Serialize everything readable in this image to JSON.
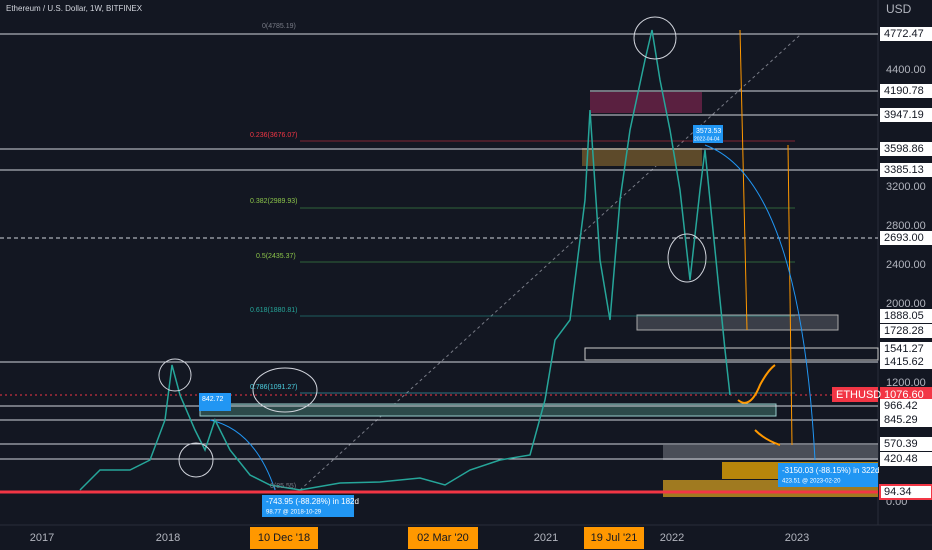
{
  "header": {
    "title": "Ethereum / U.S. Dollar, 1W, BITFINEX",
    "currency": "USD",
    "symbol": "ETHUSD"
  },
  "price_axis": [
    "4400.00",
    "3200.00",
    "2800.00",
    "2400.00",
    "2000.00",
    "1200.00",
    "0.00"
  ],
  "levels": [
    "4772.47",
    "4190.78",
    "3947.19",
    "3598.86",
    "3385.13",
    "2693.00",
    "1888.05",
    "1728.28",
    "1541.27",
    "1415.62",
    "1076.60",
    "966.42",
    "845.29",
    "570.39",
    "420.48",
    "94.34"
  ],
  "fib": [
    "0(4785.19)",
    "0.236(3676.07)",
    "0.382(2989.93)",
    "0.5(2435.37)",
    "0.618(1880.81)",
    "0.786(1091.27)",
    "0(85.55)"
  ],
  "time_axis": [
    "2017",
    "2018",
    "10 Dec '18",
    "02 Mar '20",
    "2021",
    "19 Jul '21",
    "2022",
    "2023"
  ],
  "annotations": {
    "peak_2018": "842.72",
    "peak_2022": "3573.53",
    "peak_2022_date": "2022-04-04",
    "drop_2018": "-743.95 (-88.28%) in 182d",
    "drop_2018_sub": "98.77 @ 2018-10-29",
    "drop_2022": "-3150.03 (-88.15%) in 322d",
    "drop_2022_sub": "423.51 @ 2023-02-20"
  }
}
